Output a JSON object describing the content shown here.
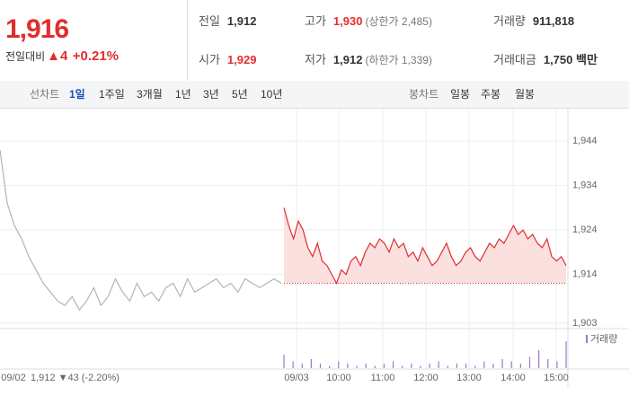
{
  "quote": {
    "price": "1,916",
    "change_label": "전일대비",
    "change": "▲4",
    "change_pct": "+0.21%"
  },
  "info": [
    [
      {
        "label": "전일",
        "value": "1,912"
      },
      {
        "label": "고가",
        "value": "1,930",
        "note": "(상한가 2,485)"
      },
      {
        "label": "거래량",
        "value": "911,818"
      }
    ],
    [
      {
        "label": "시가",
        "value": "1,929"
      },
      {
        "label": "저가",
        "value": "1,912",
        "note": "(하한가 1,339)"
      },
      {
        "label": "거래대금",
        "value": "1,750 백만"
      }
    ]
  ],
  "tabs": {
    "line_label": "선차트",
    "line": [
      "1일",
      "1주일",
      "3개월",
      "1년",
      "3년",
      "5년",
      "10년"
    ],
    "candle_label": "봉차트",
    "candle": [
      "일봉",
      "주봉",
      "월봉"
    ]
  },
  "chart_data": {
    "type": "line",
    "ylim": [
      1902,
      1949.5
    ],
    "yticks": [
      {
        "value": 1944,
        "label": "1,944"
      },
      {
        "value": 1934,
        "label": "1,934"
      },
      {
        "value": 1924,
        "label": "1,924"
      },
      {
        "value": 1914,
        "label": "1,914"
      },
      {
        "value": 1903,
        "label": "1,903"
      }
    ],
    "x_labels": [
      "09/02",
      "09/03",
      "10:00",
      "11:00",
      "12:00",
      "13:00",
      "14:00",
      "15:00"
    ],
    "prev_summary": "1,912 ▼43 (-2.20%)",
    "reference": 1912,
    "series": [
      {
        "color": "#b4b4b4",
        "values": [
          1942,
          1930,
          1925,
          1922,
          1918,
          1915,
          1912,
          1910,
          1908,
          1907,
          1909,
          1906,
          1908,
          1911,
          1907,
          1909,
          1913,
          1910,
          1908,
          1912,
          1909,
          1910,
          1908,
          1911,
          1912,
          1909,
          1913,
          1910,
          1911,
          1912,
          1913,
          1911,
          1912,
          1910,
          1913,
          1912,
          1911,
          1912,
          1913,
          1912
        ]
      },
      {
        "color": "#e12d2d",
        "values": [
          1929,
          1925,
          1922,
          1926,
          1924,
          1920,
          1918,
          1921,
          1917,
          1916,
          1914,
          1912,
          1915,
          1914,
          1917,
          1918,
          1916,
          1919,
          1921,
          1920,
          1922,
          1921,
          1919,
          1922,
          1920,
          1921,
          1918,
          1919,
          1917,
          1920,
          1918,
          1916,
          1917,
          1919,
          1921,
          1918,
          1916,
          1917,
          1919,
          1920,
          1918,
          1917,
          1919,
          1921,
          1920,
          1922,
          1921,
          1923,
          1925,
          1923,
          1924,
          1922,
          1923,
          1921,
          1920,
          1922,
          1918,
          1917,
          1918,
          1916
        ]
      }
    ],
    "volume": {
      "name": "거래량",
      "color": "#9a7bd0",
      "values": [
        6,
        3,
        2,
        4,
        2,
        1,
        3,
        2,
        1,
        2,
        1,
        2,
        3,
        1,
        2,
        1,
        2,
        3,
        1,
        2,
        2,
        1,
        3,
        2,
        4,
        3,
        2,
        5,
        8,
        4,
        3,
        12
      ]
    }
  }
}
